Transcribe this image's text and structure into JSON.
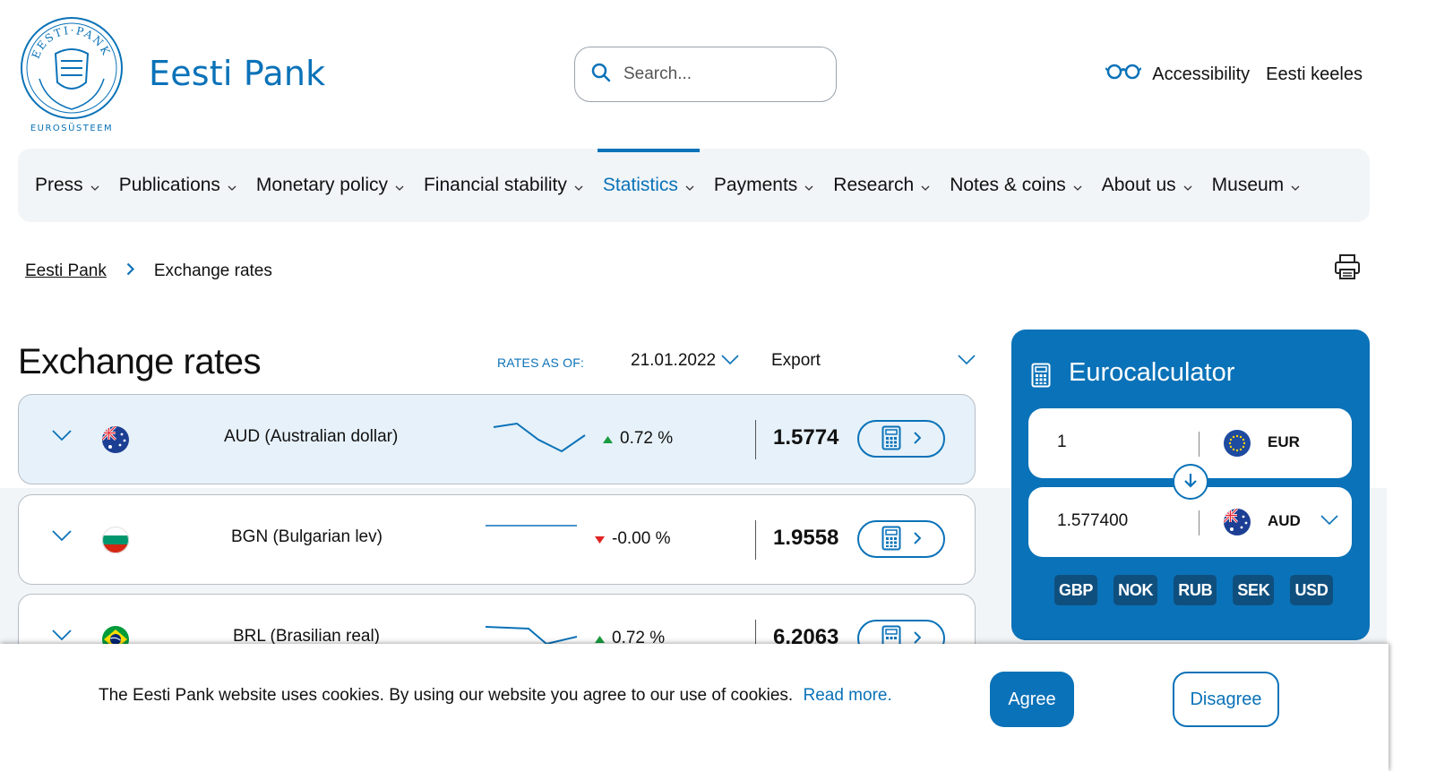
{
  "header": {
    "brand": "Eesti Pank",
    "logo_text": "EESTI PANK · EUROSÜSTEEM",
    "logo_caption": "EUROSÜSTEEM",
    "search_placeholder": "Search...",
    "accessibility": "Accessibility",
    "language": "Eesti keeles",
    "accent_color": "#0a72b8"
  },
  "nav": {
    "items": [
      {
        "label": "Press"
      },
      {
        "label": "Publications"
      },
      {
        "label": "Monetary policy"
      },
      {
        "label": "Financial stability"
      },
      {
        "label": "Statistics",
        "active": true
      },
      {
        "label": "Payments"
      },
      {
        "label": "Research"
      },
      {
        "label": "Notes & coins"
      },
      {
        "label": "About us"
      },
      {
        "label": "Museum"
      }
    ]
  },
  "breadcrumb": {
    "home": "Eesti Pank",
    "current": "Exchange rates"
  },
  "page": {
    "title": "Exchange rates",
    "rates_as_of_label": "RATES AS OF:",
    "rates_date": "21.01.2022",
    "export_label": "Export"
  },
  "rates": [
    {
      "code_name": "AUD (Australian dollar)",
      "change": "0.72 %",
      "direction": "up",
      "rate": "1.5774",
      "flag": "australia-flag"
    },
    {
      "code_name": "BGN (Bulgarian lev)",
      "change": "-0.00 %",
      "direction": "down",
      "rate": "1.9558",
      "flag": "bulgaria-flag"
    },
    {
      "code_name": "BRL (Brasilian real)",
      "change": "0.72 %",
      "direction": "up",
      "rate": "6.2063",
      "flag": "brazil-flag"
    }
  ],
  "eurocalculator": {
    "title": "Eurocalculator",
    "from_value": "1",
    "from_currency": "EUR",
    "to_value": "1.577400",
    "to_currency": "AUD",
    "quick_currencies": [
      "GBP",
      "NOK",
      "RUB",
      "SEK",
      "USD"
    ]
  },
  "cookie": {
    "message": "The Eesti Pank website uses cookies. By using our website you agree to our use of cookies.",
    "read_more": "Read more.",
    "agree": "Agree",
    "disagree": "Disagree"
  }
}
